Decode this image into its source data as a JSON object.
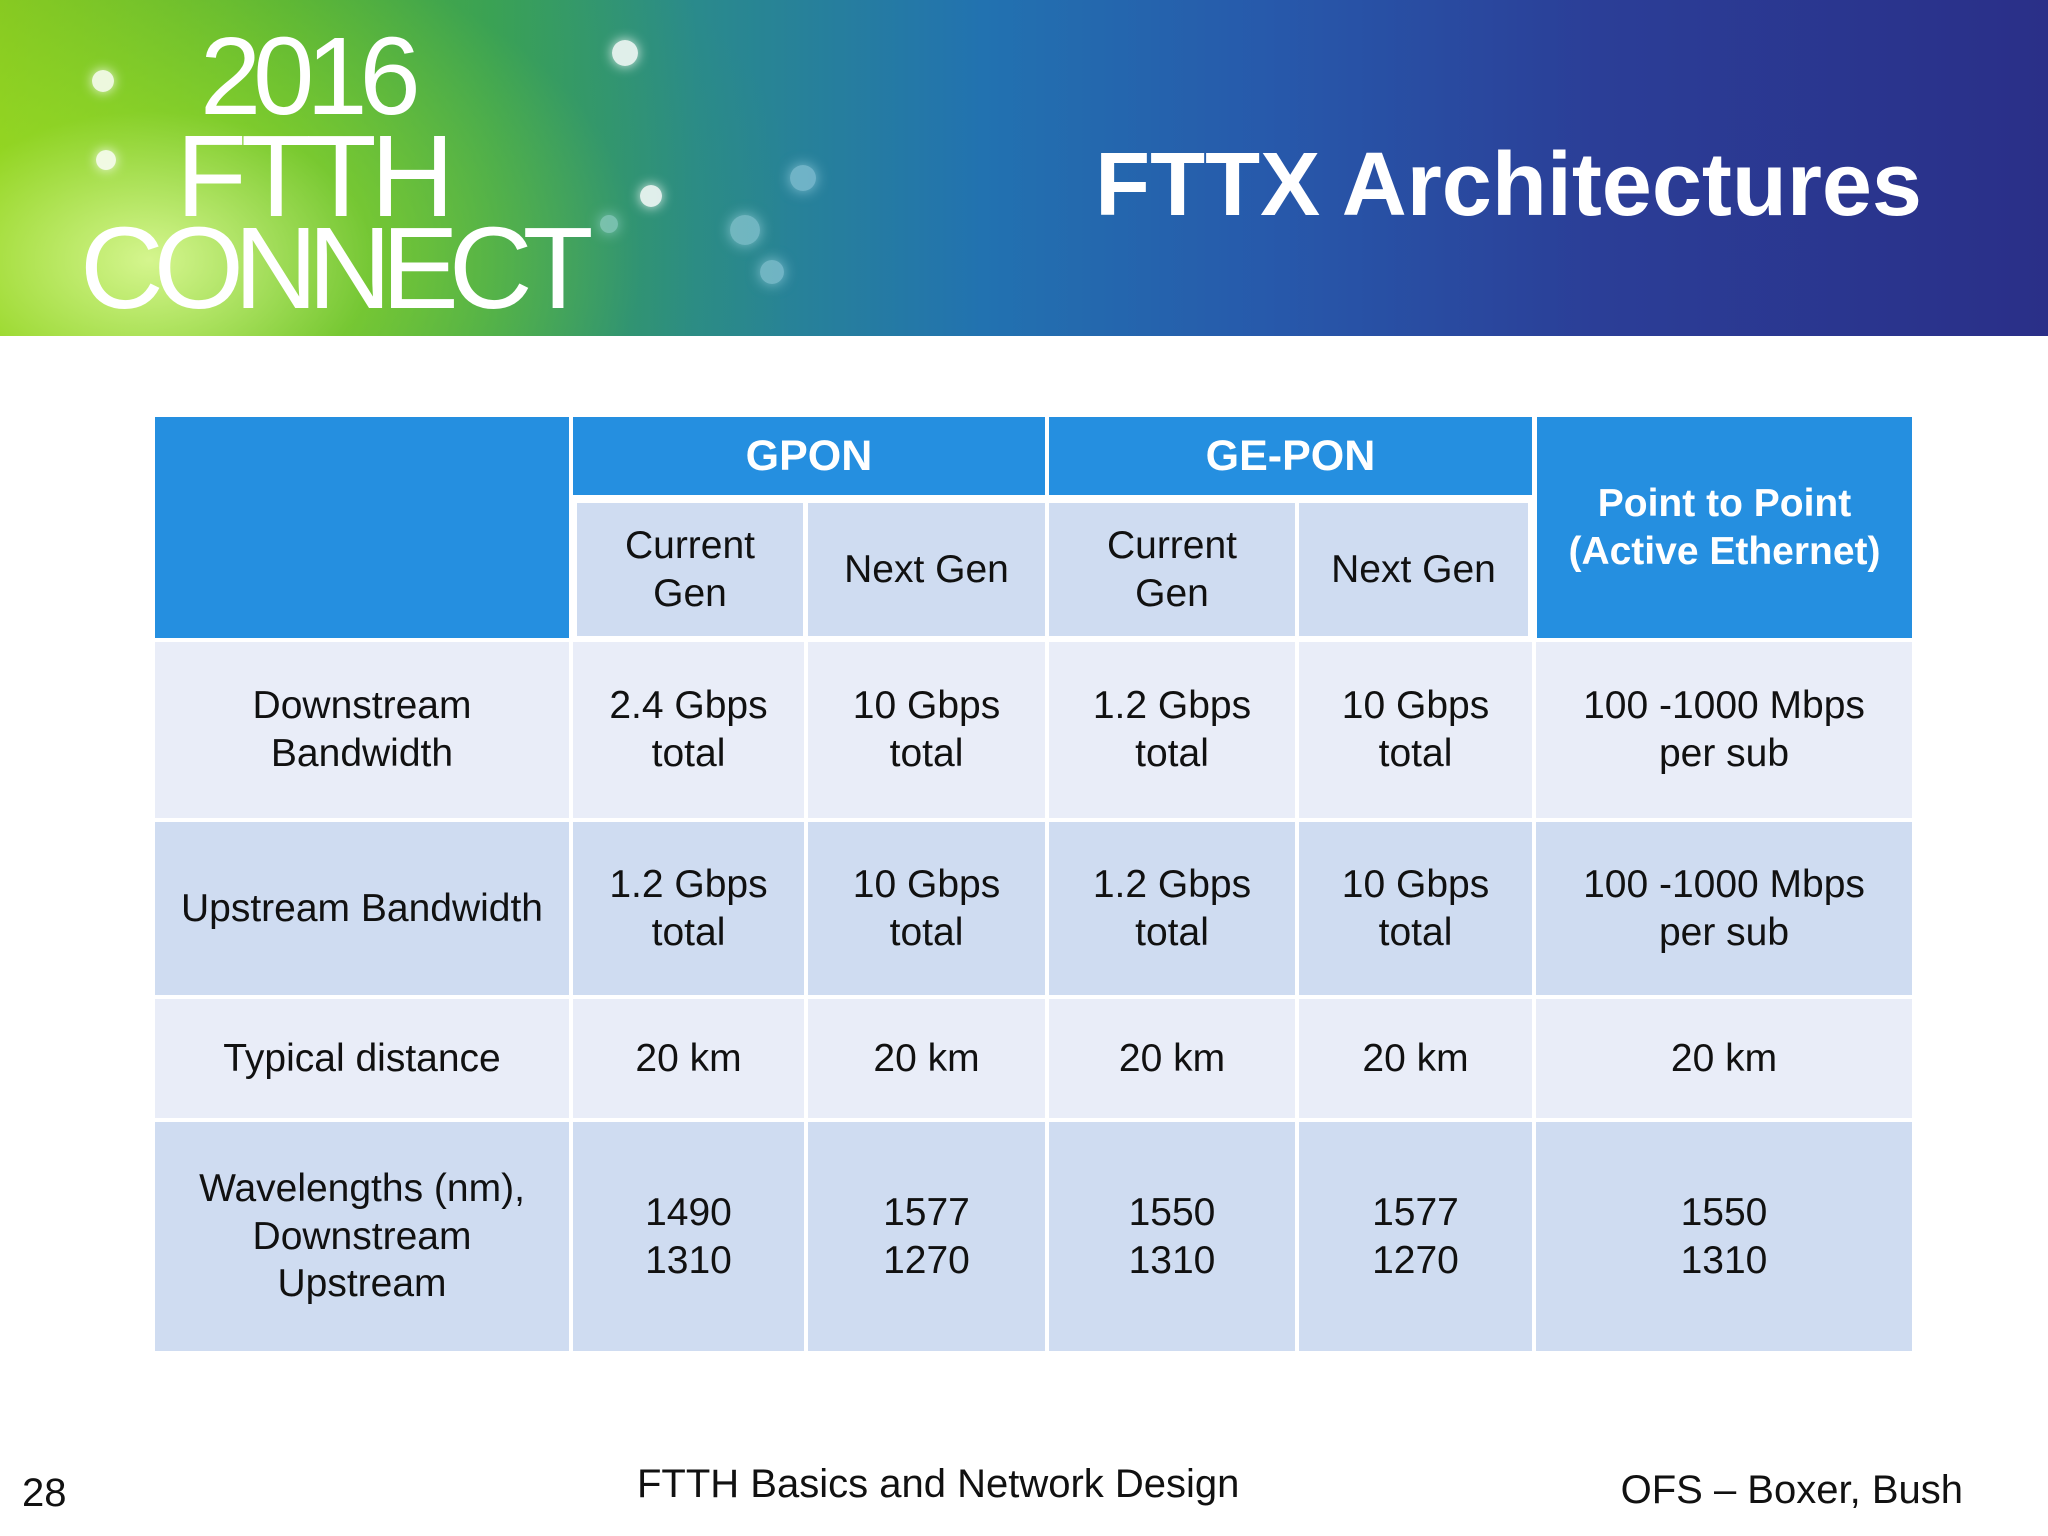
{
  "banner": {
    "logo": {
      "year": "2016",
      "line1": "FTTH",
      "line2": "CONNECT"
    },
    "title": "FTTX Architectures"
  },
  "table": {
    "groups": {
      "gpon": "GPON",
      "gepon": "GE-PON",
      "p2p": "Point to Point\n(Active Ethernet)"
    },
    "subheaders": [
      "Current\nGen",
      "Next Gen",
      "Current\nGen",
      "Next Gen"
    ],
    "rows": [
      {
        "label": "Downstream\nBandwidth",
        "values": [
          "2.4 Gbps\ntotal",
          "10 Gbps\ntotal",
          "1.2 Gbps\ntotal",
          "10 Gbps\ntotal",
          "100 -1000 Mbps\nper sub"
        ]
      },
      {
        "label": "Upstream Bandwidth",
        "values": [
          "1.2 Gbps\ntotal",
          "10 Gbps\ntotal",
          "1.2 Gbps\ntotal",
          "10 Gbps\ntotal",
          "100 -1000 Mbps\nper sub"
        ]
      },
      {
        "label": "Typical distance",
        "values": [
          "20 km",
          "20 km",
          "20 km",
          "20 km",
          "20 km"
        ]
      },
      {
        "label": "Wavelengths (nm),\nDownstream\nUpstream",
        "values": [
          "1490\n1310",
          "1577\n1270",
          "1550\n1310",
          "1577\n1270",
          "1550\n1310"
        ]
      }
    ]
  },
  "footer": {
    "page_number": "28",
    "center_text": "FTTH Basics and Network Design",
    "right_text": "OFS – Boxer, Bush"
  },
  "colors": {
    "header_blue": "#258fe0",
    "row_light": "#e9edf8",
    "row_dark": "#cfdcf1"
  }
}
